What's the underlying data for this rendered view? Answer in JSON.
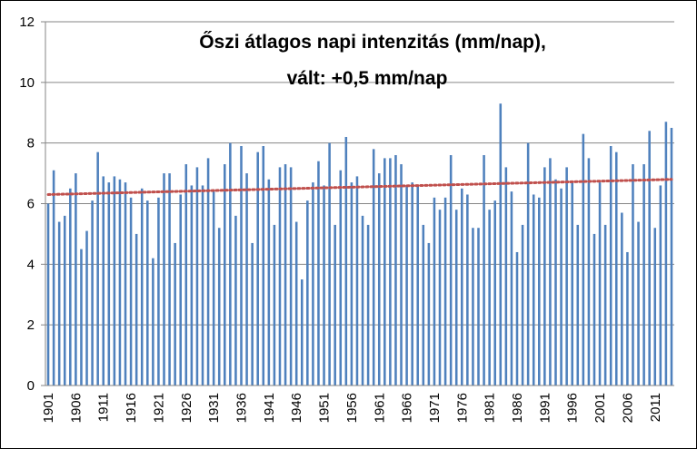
{
  "chart_data": {
    "type": "bar",
    "title_lines": [
      "Őszi átlagos napi intenzitás (mm/nap),",
      "vált: +0,5 mm/nap"
    ],
    "xlabel": "",
    "ylabel": "",
    "ylim": [
      0,
      12
    ],
    "yticks": [
      0,
      2,
      4,
      6,
      8,
      10,
      12
    ],
    "grid": true,
    "legend": "none",
    "x_start": 1901,
    "x_end": 2014,
    "x_tick_labels": [
      "1901",
      "1906",
      "1911",
      "1916",
      "1921",
      "1926",
      "1931",
      "1936",
      "1941",
      "1946",
      "1951",
      "1956",
      "1961",
      "1966",
      "1971",
      "1976",
      "1981",
      "1986",
      "1991",
      "1996",
      "2001",
      "2006",
      "2011"
    ],
    "years": [
      1901,
      1902,
      1903,
      1904,
      1905,
      1906,
      1907,
      1908,
      1909,
      1910,
      1911,
      1912,
      1913,
      1914,
      1915,
      1916,
      1917,
      1918,
      1919,
      1920,
      1921,
      1922,
      1923,
      1924,
      1925,
      1926,
      1927,
      1928,
      1929,
      1930,
      1931,
      1932,
      1933,
      1934,
      1935,
      1936,
      1937,
      1938,
      1939,
      1940,
      1941,
      1942,
      1943,
      1944,
      1945,
      1946,
      1947,
      1948,
      1949,
      1950,
      1951,
      1952,
      1953,
      1954,
      1955,
      1956,
      1957,
      1958,
      1959,
      1960,
      1961,
      1962,
      1963,
      1964,
      1965,
      1966,
      1967,
      1968,
      1969,
      1970,
      1971,
      1972,
      1973,
      1974,
      1975,
      1976,
      1977,
      1978,
      1979,
      1980,
      1981,
      1982,
      1983,
      1984,
      1985,
      1986,
      1987,
      1988,
      1989,
      1990,
      1991,
      1992,
      1993,
      1994,
      1995,
      1996,
      1997,
      1998,
      1999,
      2000,
      2001,
      2002,
      2003,
      2004,
      2005,
      2006,
      2007,
      2008,
      2009,
      2010,
      2011,
      2012,
      2013,
      2014
    ],
    "values": [
      6.0,
      7.1,
      5.4,
      5.6,
      6.5,
      7.0,
      4.5,
      5.1,
      6.1,
      7.7,
      6.9,
      6.7,
      6.9,
      6.8,
      6.7,
      6.2,
      5.0,
      6.5,
      6.1,
      4.2,
      6.2,
      7.0,
      7.0,
      4.7,
      6.3,
      7.3,
      6.6,
      7.2,
      6.6,
      7.5,
      6.4,
      5.2,
      7.3,
      8.0,
      5.6,
      7.9,
      7.0,
      4.7,
      7.7,
      7.9,
      6.8,
      5.3,
      7.2,
      7.3,
      7.2,
      5.4,
      3.5,
      6.1,
      6.7,
      7.4,
      6.6,
      8.0,
      5.3,
      7.1,
      8.2,
      6.7,
      6.9,
      5.6,
      5.3,
      7.8,
      7.0,
      7.5,
      7.5,
      7.6,
      7.3,
      6.6,
      6.7,
      6.6,
      5.3,
      4.7,
      6.2,
      5.8,
      6.2,
      7.6,
      5.8,
      6.5,
      6.3,
      5.2,
      5.2,
      7.6,
      5.8,
      6.1,
      9.3,
      7.2,
      6.4,
      4.4,
      5.3,
      8.0,
      6.3,
      6.2,
      7.2,
      7.5,
      6.8,
      6.5,
      7.2,
      6.7,
      5.3,
      8.3,
      7.5,
      5.0,
      6.7,
      5.3,
      7.9,
      7.7,
      5.7,
      4.4,
      7.3,
      5.4,
      7.3,
      8.4,
      5.2,
      6.6,
      8.7,
      8.5
    ],
    "bar_color": "#4F81BD",
    "trendline": {
      "type": "linear",
      "start_value": 6.3,
      "end_value": 6.8,
      "color": "#C0504D"
    }
  }
}
